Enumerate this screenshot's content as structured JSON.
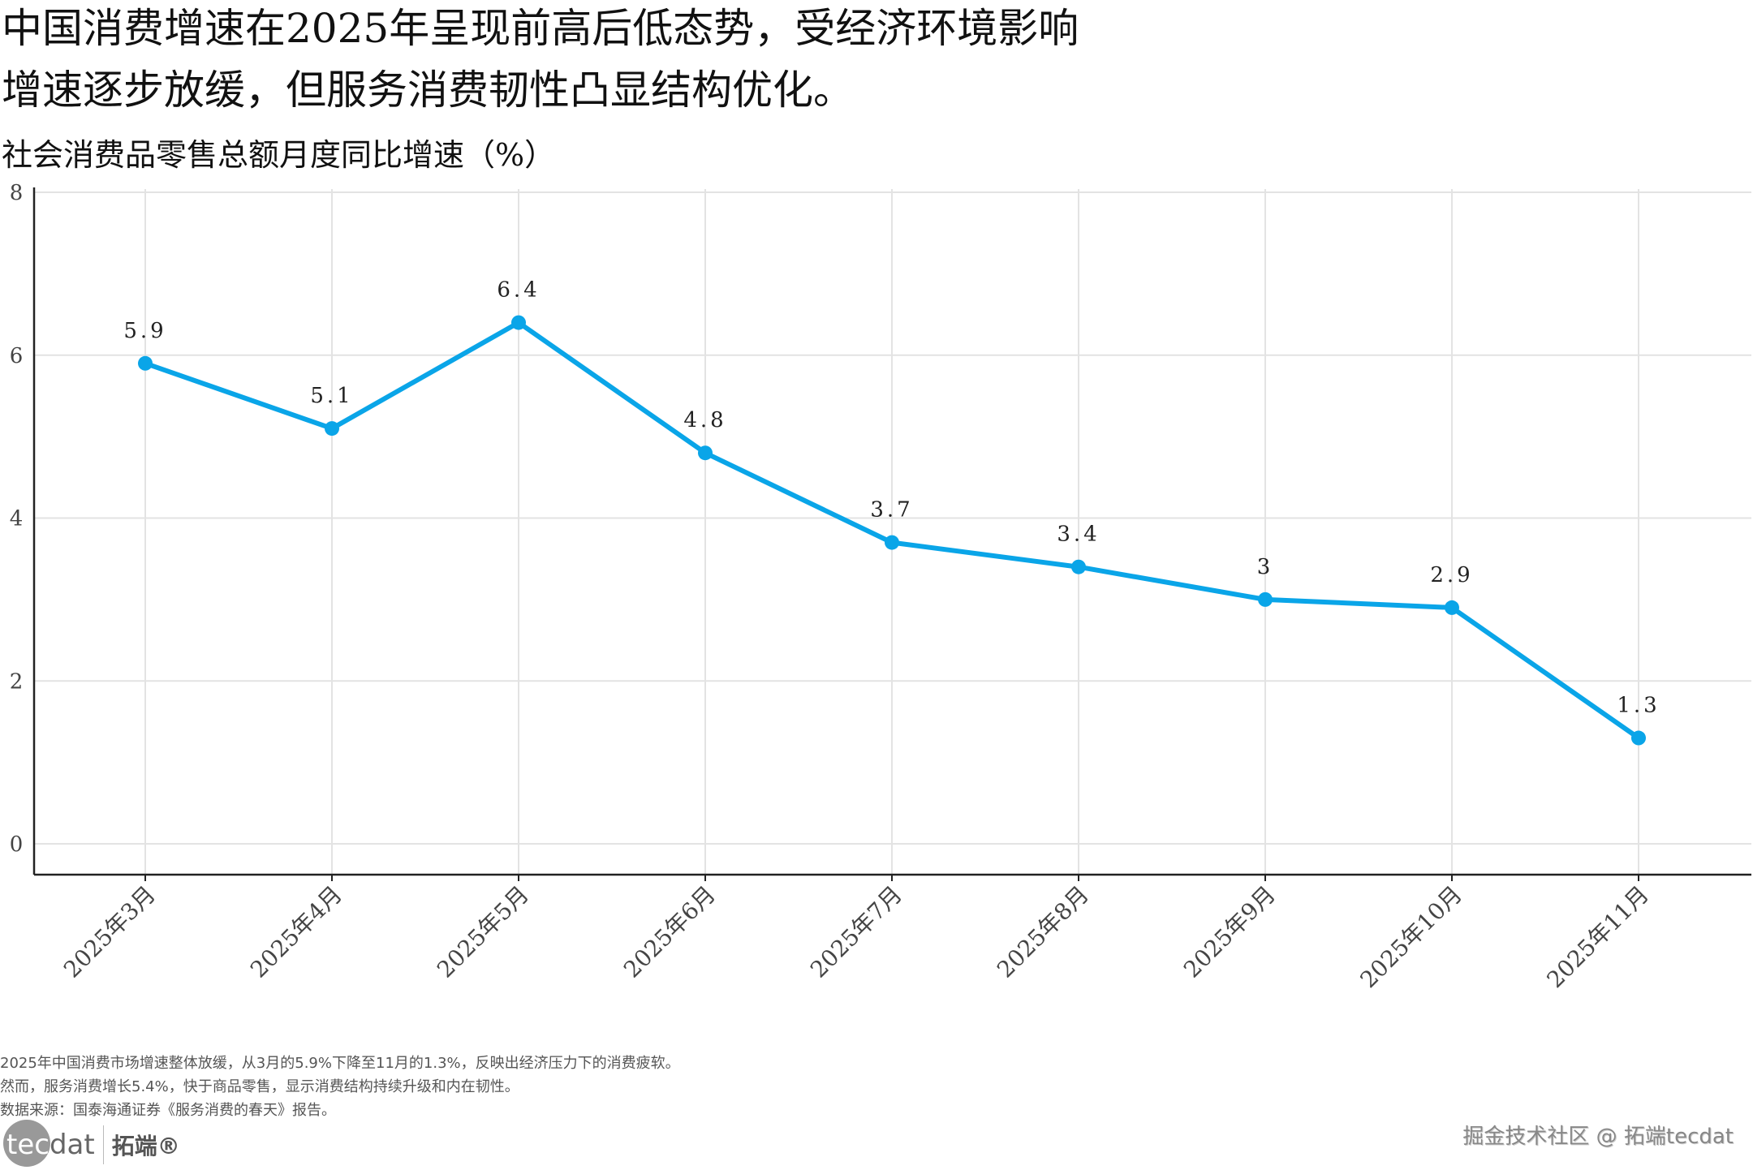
{
  "title_lines": [
    "中国消费增速在2025年呈现前高后低态势，受经济环境影响",
    "增速逐步放缓，但服务消费韧性凸显结构优化。"
  ],
  "subtitle": "社会消费品零售总额月度同比增速（%）",
  "chart_data": {
    "type": "line",
    "categories": [
      "2025年3月",
      "2025年4月",
      "2025年5月",
      "2025年6月",
      "2025年7月",
      "2025年8月",
      "2025年9月",
      "2025年10月",
      "2025年11月"
    ],
    "values": [
      5.9,
      5.1,
      6.4,
      4.8,
      3.7,
      3.4,
      3,
      2.9,
      1.3
    ],
    "data_labels": [
      "5.9",
      "5.1",
      "6.4",
      "4.8",
      "3.7",
      "3.4",
      "3",
      "2.9",
      "1.3"
    ],
    "ylim": [
      0,
      8
    ],
    "yticks": [
      "0",
      "2",
      "4",
      "6",
      "8"
    ],
    "grid": true,
    "color": "#0aa5e8"
  },
  "notes": [
    "2025年中国消费市场增速整体放缓，从3月的5.9%下降至11月的1.3%，反映出经济压力下的消费疲软。",
    "然而，服务消费增长5.4%，快于商品零售，显示消费结构持续升级和内在韧性。",
    "数据来源：国泰海通证券《服务消费的春天》报告。"
  ],
  "logo": {
    "tec": "tec",
    "dat": "dat",
    "cn": "拓端®"
  },
  "watermark": "掘金技术社区 @ 拓端tecdat"
}
